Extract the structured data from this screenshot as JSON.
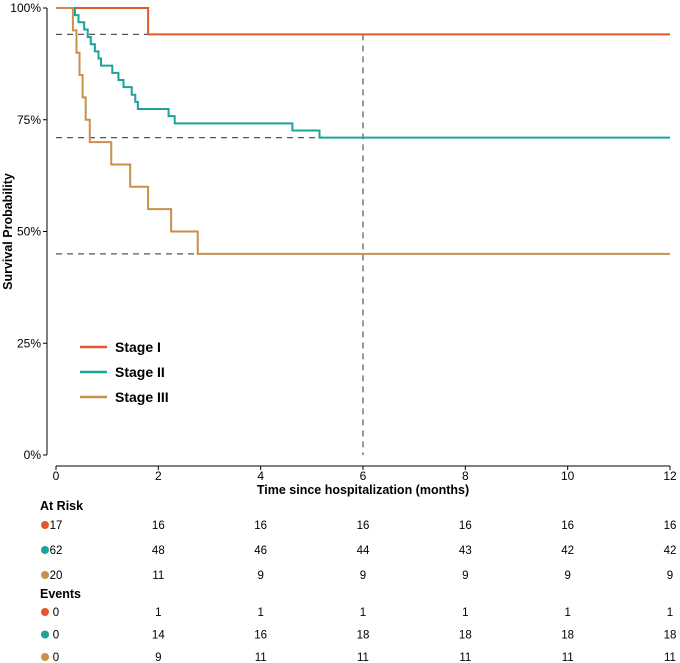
{
  "chart_data": {
    "type": "line",
    "subtype": "kaplan-meier step",
    "xlabel": "Time since hospitalization (months)",
    "ylabel": "Survival Probability",
    "xlim": [
      0,
      12
    ],
    "ylim": [
      0,
      1
    ],
    "x_ticks": [
      0,
      2,
      4,
      6,
      8,
      10,
      12
    ],
    "x_tick_labels": [
      "0",
      "2",
      "4",
      "6",
      "8",
      "10",
      "12"
    ],
    "y_ticks": [
      0,
      0.25,
      0.5,
      0.75,
      1.0
    ],
    "y_tick_labels": [
      "0%",
      "25%",
      "50%",
      "75%",
      "100%"
    ],
    "grid": false,
    "legend_position": "bottom-left",
    "reference_lines": {
      "vertical_x": 6,
      "horizontal_y": [
        0.941,
        0.71,
        0.45
      ]
    },
    "series": [
      {
        "name": "Stage I",
        "color": "#E4572E",
        "steps": [
          [
            0,
            1.0
          ],
          [
            1.8,
            0.941
          ],
          [
            12,
            0.941
          ]
        ]
      },
      {
        "name": "Stage II",
        "color": "#1AA39A",
        "steps": [
          [
            0,
            1.0
          ],
          [
            0.37,
            0.984
          ],
          [
            0.44,
            0.968
          ],
          [
            0.55,
            0.952
          ],
          [
            0.62,
            0.935
          ],
          [
            0.68,
            0.919
          ],
          [
            0.76,
            0.903
          ],
          [
            0.83,
            0.887
          ],
          [
            0.88,
            0.871
          ],
          [
            1.1,
            0.855
          ],
          [
            1.22,
            0.839
          ],
          [
            1.32,
            0.823
          ],
          [
            1.48,
            0.806
          ],
          [
            1.55,
            0.79
          ],
          [
            1.6,
            0.774
          ],
          [
            2.2,
            0.758
          ],
          [
            2.32,
            0.742
          ],
          [
            4.62,
            0.726
          ],
          [
            5.15,
            0.71
          ],
          [
            12,
            0.71
          ]
        ]
      },
      {
        "name": "Stage III",
        "color": "#C8904B",
        "steps": [
          [
            0,
            1.0
          ],
          [
            0.33,
            0.95
          ],
          [
            0.4,
            0.9
          ],
          [
            0.46,
            0.85
          ],
          [
            0.52,
            0.8
          ],
          [
            0.58,
            0.75
          ],
          [
            0.66,
            0.7
          ],
          [
            1.08,
            0.65
          ],
          [
            1.45,
            0.6
          ],
          [
            1.8,
            0.55
          ],
          [
            2.25,
            0.5
          ],
          [
            2.77,
            0.45
          ],
          [
            12,
            0.45
          ]
        ]
      }
    ],
    "risk_table": {
      "title": "At Risk",
      "times": [
        0,
        2,
        4,
        6,
        8,
        10,
        12
      ],
      "rows": [
        {
          "series": "Stage I",
          "values": [
            "17",
            "16",
            "16",
            "16",
            "16",
            "16",
            "16"
          ]
        },
        {
          "series": "Stage II",
          "values": [
            "62",
            "48",
            "46",
            "44",
            "43",
            "42",
            "42"
          ]
        },
        {
          "series": "Stage III",
          "values": [
            "20",
            "11",
            "9",
            "9",
            "9",
            "9",
            "9"
          ]
        }
      ]
    },
    "events_table": {
      "title": "Events",
      "times": [
        0,
        2,
        4,
        6,
        8,
        10,
        12
      ],
      "rows": [
        {
          "series": "Stage I",
          "values": [
            "0",
            "1",
            "1",
            "1",
            "1",
            "1",
            "1"
          ]
        },
        {
          "series": "Stage II",
          "values": [
            "0",
            "14",
            "16",
            "18",
            "18",
            "18",
            "18"
          ]
        },
        {
          "series": "Stage III",
          "values": [
            "0",
            "9",
            "11",
            "11",
            "11",
            "11",
            "11"
          ]
        }
      ]
    }
  }
}
